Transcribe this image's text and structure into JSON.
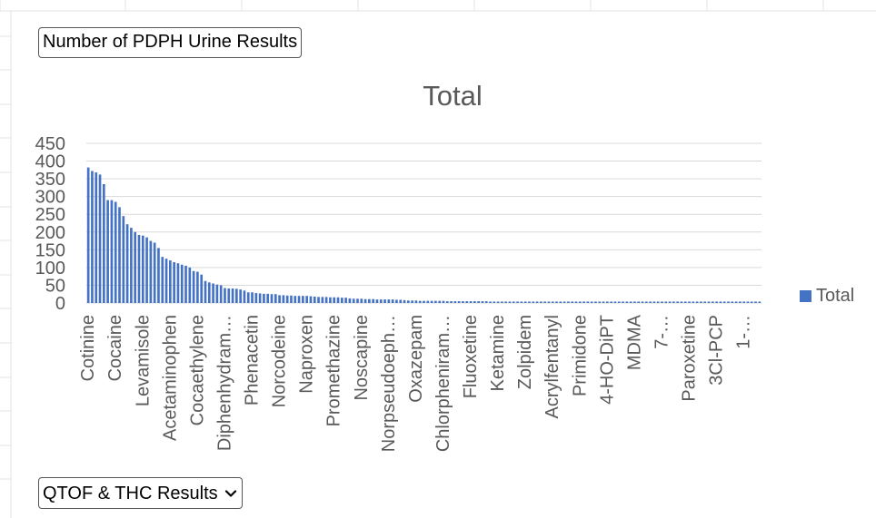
{
  "pivot": {
    "value_field_label": "Number of PDPH Urine Results",
    "filter_field_label": "QTOF & THC Results"
  },
  "colors": {
    "series": "#4472C4",
    "gridline": "#D9D9D9",
    "axis_text": "#595959",
    "sheet_grid": "#E3E3E3"
  },
  "chart_data": {
    "type": "bar",
    "title": "Total",
    "xlabel": "",
    "ylabel": "",
    "ylim": [
      0,
      450
    ],
    "yticks": [
      0,
      50,
      100,
      150,
      200,
      250,
      300,
      350,
      400,
      450
    ],
    "grid": true,
    "legend_position": "right",
    "tick_labels": [
      {
        "i": 0,
        "text": "Cotinine"
      },
      {
        "i": 7,
        "text": "Cocaine"
      },
      {
        "i": 14,
        "text": "Levamisole"
      },
      {
        "i": 21,
        "text": "Acetaminophen"
      },
      {
        "i": 28,
        "text": "Cocaethylene"
      },
      {
        "i": 35,
        "text": "Diphenhydram…"
      },
      {
        "i": 42,
        "text": "Phenacetin"
      },
      {
        "i": 49,
        "text": "Norcodeine"
      },
      {
        "i": 56,
        "text": "Naproxen"
      },
      {
        "i": 63,
        "text": "Promethazine"
      },
      {
        "i": 70,
        "text": "Noscapine"
      },
      {
        "i": 77,
        "text": "Norpseudoeph…"
      },
      {
        "i": 84,
        "text": "Oxazepam"
      },
      {
        "i": 91,
        "text": "Chlorpheniram…"
      },
      {
        "i": 98,
        "text": "Fluoxetine"
      },
      {
        "i": 105,
        "text": "Ketamine"
      },
      {
        "i": 112,
        "text": "Zolpidem"
      },
      {
        "i": 119,
        "text": "Acrylfentanyl"
      },
      {
        "i": 126,
        "text": "Primidone"
      },
      {
        "i": 133,
        "text": "4-HO-DiPT"
      },
      {
        "i": 140,
        "text": "MDMA"
      },
      {
        "i": 147,
        "text": "7-…"
      },
      {
        "i": 154,
        "text": "Paroxetine"
      },
      {
        "i": 161,
        "text": "3Cl-PCP"
      },
      {
        "i": 168,
        "text": "1-…"
      }
    ],
    "series": [
      {
        "name": "Total",
        "values": [
          382,
          372,
          368,
          362,
          335,
          290,
          290,
          285,
          270,
          245,
          222,
          212,
          200,
          192,
          190,
          185,
          175,
          170,
          155,
          130,
          125,
          120,
          115,
          112,
          108,
          105,
          100,
          90,
          88,
          80,
          62,
          58,
          55,
          52,
          50,
          42,
          41,
          41,
          40,
          38,
          35,
          30,
          30,
          28,
          27,
          26,
          26,
          25,
          25,
          22,
          22,
          21,
          21,
          20,
          20,
          20,
          20,
          19,
          18,
          17,
          17,
          17,
          16,
          16,
          16,
          15,
          15,
          13,
          12,
          12,
          12,
          11,
          11,
          11,
          10,
          10,
          10,
          10,
          10,
          9,
          9,
          8,
          7,
          7,
          7,
          6,
          6,
          6,
          6,
          6,
          6,
          6,
          5,
          5,
          5,
          5,
          5,
          5,
          5,
          5,
          5,
          5,
          5,
          4,
          4,
          4,
          4,
          4,
          4,
          4,
          4,
          4,
          4,
          4,
          4,
          4,
          4,
          4,
          4,
          4,
          4,
          4,
          4,
          4,
          4,
          4,
          4,
          4,
          4,
          4,
          4,
          4,
          4,
          4,
          4,
          4,
          4,
          4,
          4,
          4,
          4,
          4,
          4,
          4,
          4,
          4,
          4,
          4,
          4,
          4,
          4,
          4,
          4,
          4,
          4,
          4,
          4,
          4,
          4,
          4,
          4,
          4,
          4,
          4,
          4,
          4,
          4,
          4,
          4,
          4,
          4,
          4,
          4
        ]
      }
    ]
  }
}
